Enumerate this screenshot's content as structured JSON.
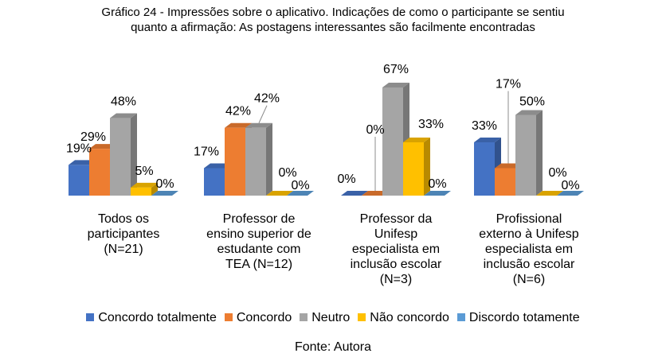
{
  "title_line1": "Gráfico 24 - Impressões sobre o aplicativo. Indicações de como o participante se sentiu",
  "title_line2": "quanto a afirmação: As postagens interessantes são facilmente encontradas",
  "source": "Fonte: Autora",
  "chart_data": {
    "type": "bar",
    "three_d": true,
    "categories": [
      [
        "Todos os",
        "participantes",
        "(N=21)"
      ],
      [
        "Professor de",
        "ensino superior de",
        "estudante com",
        "TEA (N=12)"
      ],
      [
        "Professor da",
        "Unifesp",
        "especialista em",
        "inclusão escolar",
        "(N=3)"
      ],
      [
        "Profissional",
        "externo à Unifesp",
        "especialista em",
        "inclusão escolar",
        "(N=6)"
      ]
    ],
    "series": [
      {
        "name": "Concordo totalmente",
        "color": "#4472C4",
        "values": [
          19,
          17,
          0,
          33
        ]
      },
      {
        "name": "Concordo",
        "color": "#ED7D31",
        "values": [
          29,
          42,
          0,
          17
        ]
      },
      {
        "name": "Neutro",
        "color": "#A5A5A5",
        "values": [
          48,
          42,
          67,
          50
        ]
      },
      {
        "name": "Não concordo",
        "color": "#FFC000",
        "values": [
          5,
          0,
          33,
          0
        ]
      },
      {
        "name": "Discordo totamente",
        "color": "#5B9BD5",
        "values": [
          0,
          0,
          0,
          0
        ]
      }
    ],
    "labels": [
      [
        "19%",
        "29%",
        "48%",
        "5%",
        "0%"
      ],
      [
        "17%",
        "42%",
        "42%",
        "0%",
        "0%"
      ],
      [
        "0%",
        "0%",
        "67%",
        "33%",
        "0%"
      ],
      [
        "33%",
        "17%",
        "50%",
        "0%",
        "0%"
      ]
    ],
    "legend_position": "bottom",
    "grid": false
  }
}
